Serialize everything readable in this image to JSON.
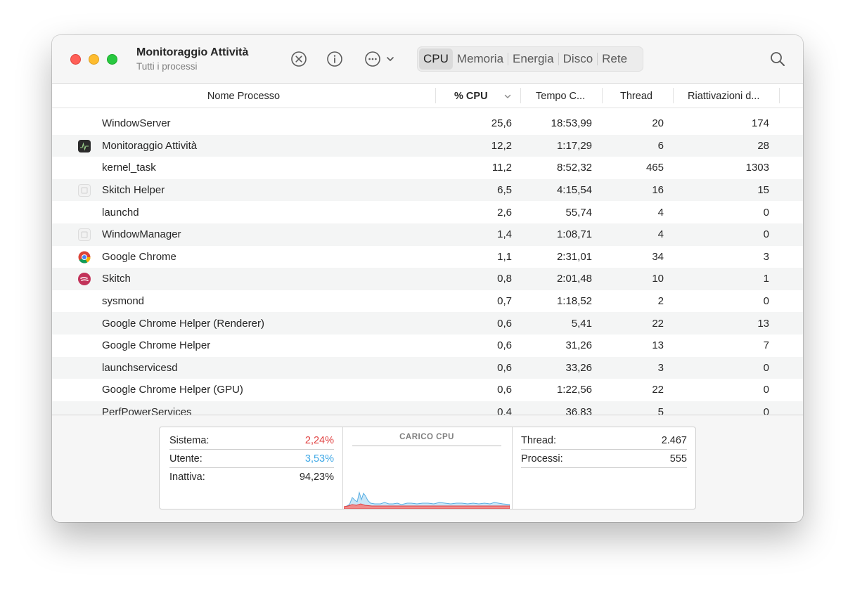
{
  "window": {
    "title": "Monitoraggio Attività",
    "subtitle": "Tutti i processi"
  },
  "toolbar": {
    "tabs": [
      "CPU",
      "Memoria",
      "Energia",
      "Disco",
      "Rete"
    ],
    "active_tab": "CPU"
  },
  "columns": {
    "name": "Nome Processo",
    "cpu": "% CPU",
    "time": "Tempo C...",
    "threads": "Thread",
    "wakeups": "Riattivazioni d..."
  },
  "processes": [
    {
      "name": "WindowServer",
      "cpu": "25,6",
      "time": "18:53,99",
      "threads": "20",
      "wakeups": "174",
      "icon": "none"
    },
    {
      "name": "Monitoraggio Attività",
      "cpu": "12,2",
      "time": "1:17,29",
      "threads": "6",
      "wakeups": "28",
      "icon": "activity-monitor-icon"
    },
    {
      "name": "kernel_task",
      "cpu": "11,2",
      "time": "8:52,32",
      "threads": "465",
      "wakeups": "1303",
      "icon": "none"
    },
    {
      "name": "Skitch Helper",
      "cpu": "6,5",
      "time": "4:15,54",
      "threads": "16",
      "wakeups": "15",
      "icon": "generic-app-icon"
    },
    {
      "name": "launchd",
      "cpu": "2,6",
      "time": "55,74",
      "threads": "4",
      "wakeups": "0",
      "icon": "none"
    },
    {
      "name": "WindowManager",
      "cpu": "1,4",
      "time": "1:08,71",
      "threads": "4",
      "wakeups": "0",
      "icon": "generic-app-icon"
    },
    {
      "name": "Google Chrome",
      "cpu": "1,1",
      "time": "2:31,01",
      "threads": "34",
      "wakeups": "3",
      "icon": "chrome-icon"
    },
    {
      "name": "Skitch",
      "cpu": "0,8",
      "time": "2:01,48",
      "threads": "10",
      "wakeups": "1",
      "icon": "skitch-icon"
    },
    {
      "name": "sysmond",
      "cpu": "0,7",
      "time": "1:18,52",
      "threads": "2",
      "wakeups": "0",
      "icon": "none"
    },
    {
      "name": "Google Chrome Helper (Renderer)",
      "cpu": "0,6",
      "time": "5,41",
      "threads": "22",
      "wakeups": "13",
      "icon": "none"
    },
    {
      "name": "Google Chrome Helper",
      "cpu": "0,6",
      "time": "31,26",
      "threads": "13",
      "wakeups": "7",
      "icon": "none"
    },
    {
      "name": "launchservicesd",
      "cpu": "0,6",
      "time": "33,26",
      "threads": "3",
      "wakeups": "0",
      "icon": "none"
    },
    {
      "name": "Google Chrome Helper (GPU)",
      "cpu": "0,6",
      "time": "1:22,56",
      "threads": "22",
      "wakeups": "0",
      "icon": "none"
    },
    {
      "name": "PerfPowerServices",
      "cpu": "0,4",
      "time": "36,83",
      "threads": "5",
      "wakeups": "0",
      "icon": "none"
    }
  ],
  "summary": {
    "system_label": "Sistema:",
    "system_value": "2,24%",
    "user_label": "Utente:",
    "user_value": "3,53%",
    "idle_label": "Inattiva:",
    "idle_value": "94,23%",
    "load_title": "CARICO CPU",
    "threads_label": "Thread:",
    "threads_value": "2.467",
    "processes_label": "Processi:",
    "processes_value": "555"
  },
  "colors": {
    "system": "#e04040",
    "user": "#3fa8e6",
    "close": "#ff5f57",
    "minimize": "#febc2e",
    "maximize": "#28c840"
  }
}
